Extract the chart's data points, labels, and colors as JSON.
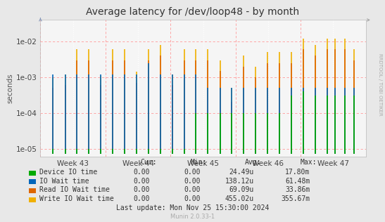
{
  "title": "Average latency for /dev/loop48 - by month",
  "ylabel": "seconds",
  "watermark": "RRDTOOL / TOBI OETIKER",
  "munin_version": "Munin 2.0.33-1",
  "x_tick_labels": [
    "Week 43",
    "Week 44",
    "Week 45",
    "Week 46",
    "Week 47"
  ],
  "ylim_min": 6e-06,
  "ylim_max": 0.04,
  "bg_color": "#e8e8e8",
  "plot_bg_color": "#f5f5f5",
  "series": [
    {
      "name": "Device IO time",
      "color": "#00aa00",
      "cur": "0.00",
      "min": "0.00",
      "avg": "24.49u",
      "max": "17.80m"
    },
    {
      "name": "IO Wait time",
      "color": "#0066bb",
      "cur": "0.00",
      "min": "0.00",
      "avg": "138.12u",
      "max": "61.48m"
    },
    {
      "name": "Read IO Wait time",
      "color": "#dd6600",
      "cur": "0.00",
      "min": "0.00",
      "avg": "69.09u",
      "max": "33.86m"
    },
    {
      "name": "Write IO Wait time",
      "color": "#f0b000",
      "cur": "0.00",
      "min": "0.00",
      "avg": "455.02u",
      "max": "355.67m"
    }
  ],
  "last_update": "Last update: Mon Nov 25 15:30:00 2024",
  "n_spikes": 27,
  "spike_x": [
    0.038,
    0.076,
    0.112,
    0.148,
    0.185,
    0.222,
    0.258,
    0.295,
    0.332,
    0.368,
    0.405,
    0.442,
    0.478,
    0.515,
    0.552,
    0.588,
    0.625,
    0.662,
    0.698,
    0.735,
    0.772,
    0.808,
    0.845,
    0.882,
    0.905,
    0.935,
    0.965
  ],
  "write_h": [
    0.001,
    0.0012,
    0.006,
    0.006,
    0.0011,
    0.006,
    0.006,
    0.0014,
    0.006,
    0.008,
    0.0012,
    0.006,
    0.006,
    0.006,
    0.003,
    0.0005,
    0.004,
    0.002,
    0.005,
    0.005,
    0.005,
    0.012,
    0.008,
    0.012,
    0.012,
    0.012,
    0.006
  ],
  "read_h": [
    0.0005,
    0.0006,
    0.003,
    0.003,
    0.0006,
    0.003,
    0.003,
    0.0007,
    0.003,
    0.004,
    0.0006,
    0.003,
    0.003,
    0.003,
    0.0015,
    0.0002,
    0.002,
    0.001,
    0.0025,
    0.0025,
    0.0025,
    0.006,
    0.004,
    0.006,
    0.006,
    0.006,
    0.003
  ],
  "io_h": [
    0.0012,
    0.0012,
    0.0012,
    0.0012,
    0.0012,
    0.0012,
    0.0012,
    0.0012,
    0.0025,
    0.0012,
    0.0012,
    0.0012,
    0.0012,
    0.0005,
    0.0005,
    0.0005,
    0.0005,
    0.0005,
    0.0005,
    0.0005,
    0.0005,
    0.0005,
    0.0005,
    0.0005,
    0.0005,
    0.0005,
    0.0005
  ],
  "dev_h": [
    1e-05,
    1e-05,
    1e-05,
    1e-05,
    1e-05,
    1e-05,
    1e-05,
    1e-05,
    1e-05,
    1e-05,
    1e-05,
    1e-05,
    0.0001,
    0.0001,
    0.0001,
    0.0001,
    0.0001,
    0.0001,
    0.0001,
    0.0001,
    0.0003,
    0.0004,
    0.0003,
    0.0003,
    0.0003,
    0.0003,
    0.0003
  ]
}
